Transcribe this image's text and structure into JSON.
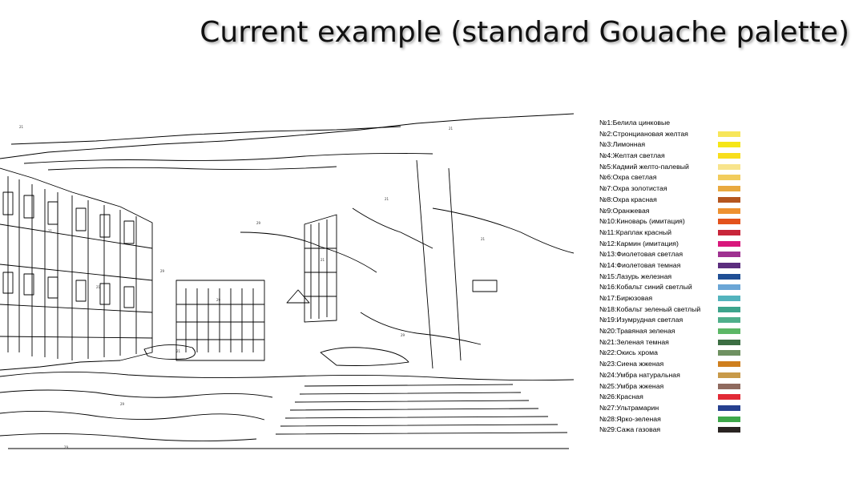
{
  "slide": {
    "title": "Current example (standard Gouache palette)"
  },
  "coloring_sheet": {
    "icon": "paint-by-numbers-street-outline",
    "region_numbers": [
      "21",
      "21",
      "21",
      "21",
      "29",
      "29",
      "29",
      "21",
      "21",
      "21",
      "29",
      "21",
      "29",
      "29"
    ]
  },
  "palette": {
    "items": [
      {
        "label": "№1:Белила цинковые",
        "color": "#ffffff"
      },
      {
        "label": "№2:Стронциановая желтая",
        "color": "#f7e65a"
      },
      {
        "label": "№3:Лимонная",
        "color": "#f5e617"
      },
      {
        "label": "№4:Желтая светлая",
        "color": "#f8de1c"
      },
      {
        "label": "№5:Кадмий желто-палевый",
        "color": "#f8e48c"
      },
      {
        "label": "№6:Охра светлая",
        "color": "#f2cc5c"
      },
      {
        "label": "№7:Охра золотистая",
        "color": "#e9a93f"
      },
      {
        "label": "№8:Охра красная",
        "color": "#b5561f"
      },
      {
        "label": "№9:Оранжевая",
        "color": "#ee9130"
      },
      {
        "label": "№10:Киноварь (имитация)",
        "color": "#e3521c"
      },
      {
        "label": "№11:Краплак красный",
        "color": "#c8263a"
      },
      {
        "label": "№12:Кармин (имитация)",
        "color": "#d8187c"
      },
      {
        "label": "№13:Фиолетовая светлая",
        "color": "#9f3191"
      },
      {
        "label": "№14:Фиолетовая темная",
        "color": "#5b2d7e"
      },
      {
        "label": "№15:Лазурь железная",
        "color": "#1f4f95"
      },
      {
        "label": "№16:Кобальт синий светлый",
        "color": "#6ba6d6"
      },
      {
        "label": "№17:Бирюзовая",
        "color": "#53b3bd"
      },
      {
        "label": "№18:Кобальт зеленый светлый",
        "color": "#3da48c"
      },
      {
        "label": "№19:Изумрудная светлая",
        "color": "#4faf8b"
      },
      {
        "label": "№20:Травяная зеленая",
        "color": "#5cb766"
      },
      {
        "label": "№21:Зеленая темная",
        "color": "#3c6e43"
      },
      {
        "label": "№22:Окись хрома",
        "color": "#6f9161"
      },
      {
        "label": "№23:Сиена жженая",
        "color": "#cf7f1e"
      },
      {
        "label": "№24:Умбра натуральная",
        "color": "#c89a4a"
      },
      {
        "label": "№25:Умбра жженая",
        "color": "#8f6a5f"
      },
      {
        "label": "№26:Красная",
        "color": "#e22a36"
      },
      {
        "label": "№27:Ультрамарин",
        "color": "#26408f"
      },
      {
        "label": "№28:Ярко-зеленая",
        "color": "#3ea84a"
      },
      {
        "label": "№29:Сажа газовая",
        "color": "#2a2422"
      }
    ]
  }
}
